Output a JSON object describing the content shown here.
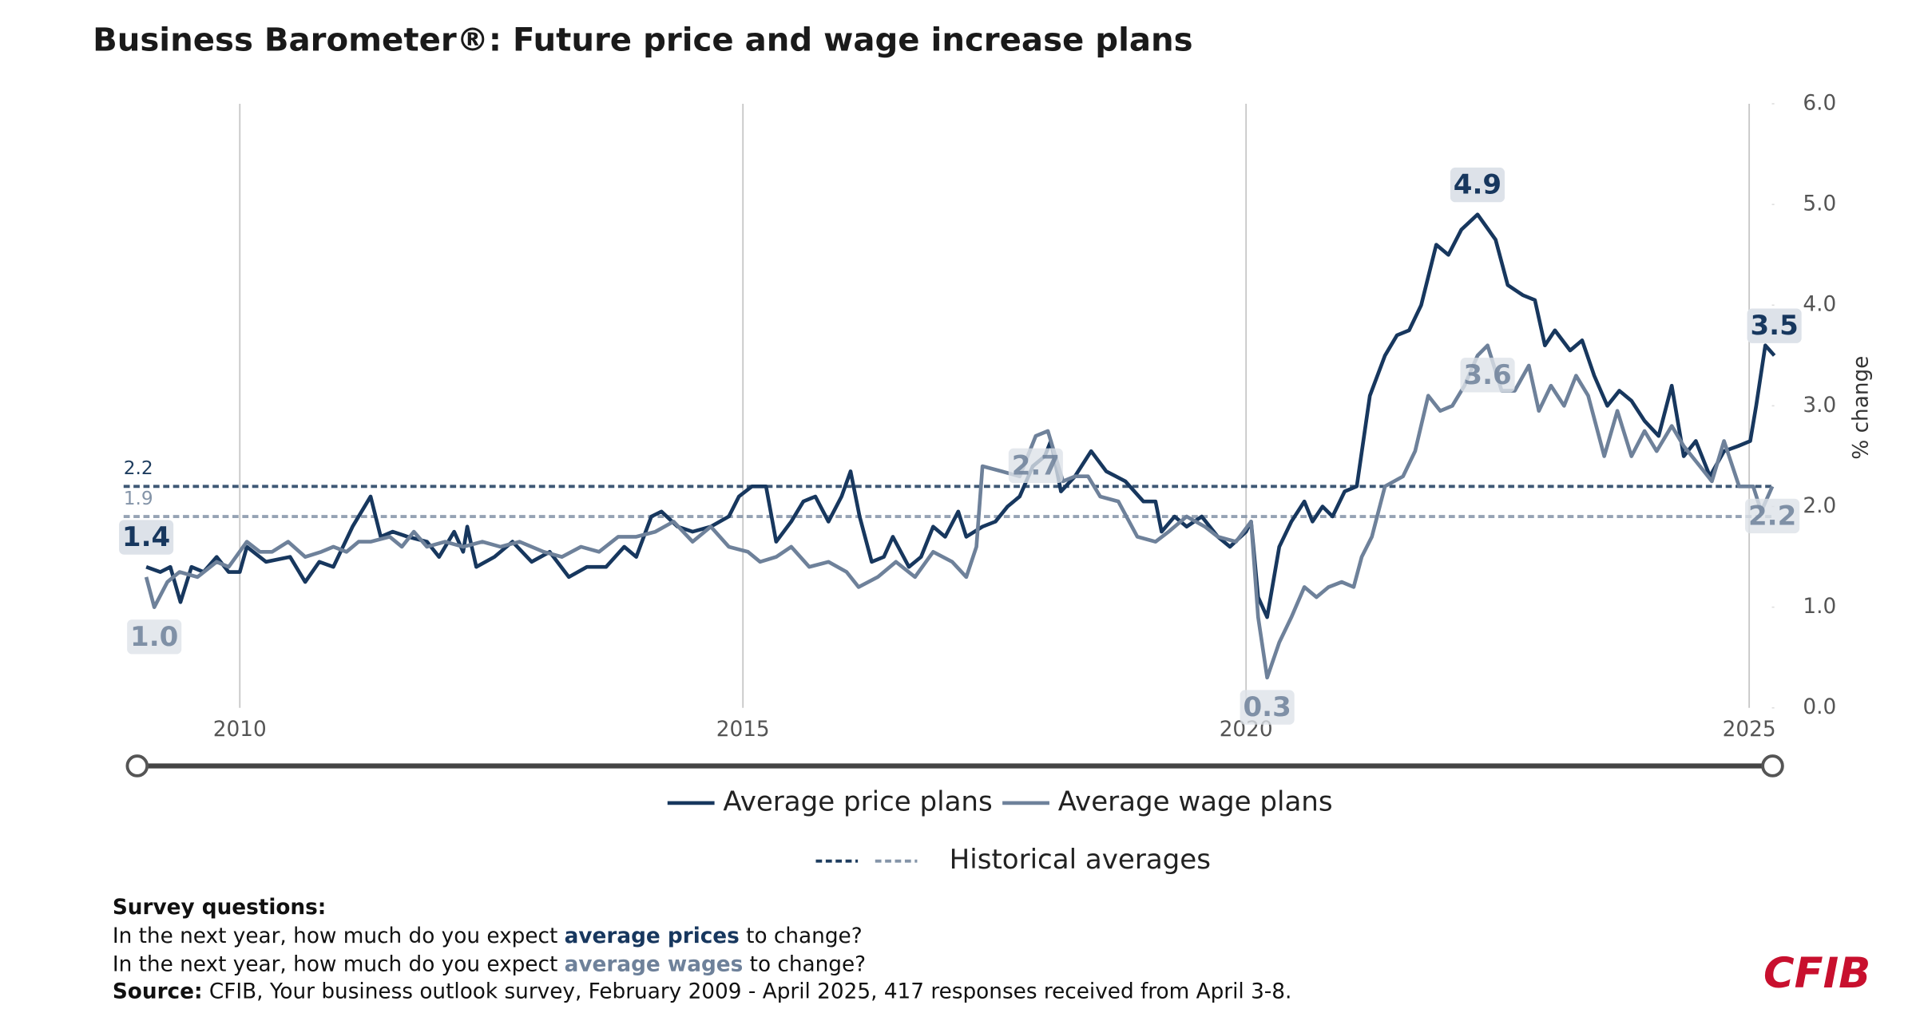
{
  "chart_data": {
    "type": "line",
    "title": "Business Barometer®: Future price and wage increase plans",
    "ylabel": "% change",
    "xlim": [
      2009,
      2025.25
    ],
    "xticks": [
      2010,
      2015,
      2020,
      2025
    ],
    "ylim": [
      0,
      6
    ],
    "yticks": [
      {
        "value": 0,
        "label": "0.0"
      },
      {
        "value": 1,
        "label": "1.0"
      },
      {
        "value": 2,
        "label": "2.0"
      },
      {
        "value": 3,
        "label": "3.0"
      },
      {
        "value": 4,
        "label": "4.0"
      },
      {
        "value": 5,
        "label": "5.0"
      },
      {
        "value": 6,
        "label": "6.0"
      }
    ],
    "grid": true,
    "historical_label": "Historical averages",
    "historical_averages": [
      {
        "value": 2.2,
        "color": "#1d3c5e"
      },
      {
        "value": 1.9,
        "color": "#8494a8"
      }
    ],
    "series": [
      {
        "name": "Average price plans",
        "color": "#17375e",
        "x": [
          2009.07,
          2009.21,
          2009.31,
          2009.41,
          2009.52,
          2009.64,
          2009.77,
          2009.89,
          2010.0,
          2010.07,
          2010.26,
          2010.5,
          2010.65,
          2010.79,
          2010.93,
          2011.12,
          2011.3,
          2011.4,
          2011.52,
          2011.67,
          2011.86,
          2011.98,
          2012.13,
          2012.22,
          2012.26,
          2012.35,
          2012.53,
          2012.71,
          2012.9,
          2013.08,
          2013.27,
          2013.45,
          2013.64,
          2013.82,
          2013.94,
          2014.09,
          2014.19,
          2014.35,
          2014.5,
          2014.68,
          2014.86,
          2014.96,
          2015.09,
          2015.23,
          2015.33,
          2015.48,
          2015.6,
          2015.72,
          2015.85,
          2015.98,
          2016.07,
          2016.16,
          2016.28,
          2016.4,
          2016.49,
          2016.65,
          2016.77,
          2016.89,
          2017.01,
          2017.14,
          2017.22,
          2017.38,
          2017.51,
          2017.63,
          2017.75,
          2017.88,
          2018.0,
          2018.06,
          2018.16,
          2018.3,
          2018.46,
          2018.61,
          2018.8,
          2018.98,
          2019.1,
          2019.16,
          2019.29,
          2019.41,
          2019.56,
          2019.72,
          2019.84,
          2020.0,
          2020.05,
          2020.12,
          2020.21,
          2020.33,
          2020.45,
          2020.58,
          2020.66,
          2020.76,
          2020.86,
          2020.98,
          2021.1,
          2021.23,
          2021.38,
          2021.5,
          2021.62,
          2021.74,
          2021.89,
          2022.01,
          2022.14,
          2022.3,
          2022.48,
          2022.6,
          2022.75,
          2022.87,
          2022.97,
          2023.07,
          2023.22,
          2023.34,
          2023.46,
          2023.59,
          2023.71,
          2023.83,
          2023.96,
          2024.1,
          2024.23,
          2024.35,
          2024.47,
          2024.61,
          2024.75,
          2024.89,
          2025.01,
          2025.07,
          2025.16,
          2025.25
        ],
        "values": [
          1.4,
          1.35,
          1.4,
          1.05,
          1.4,
          1.35,
          1.5,
          1.35,
          1.35,
          1.6,
          1.45,
          1.5,
          1.25,
          1.45,
          1.4,
          1.8,
          2.1,
          1.7,
          1.75,
          1.7,
          1.65,
          1.5,
          1.75,
          1.55,
          1.8,
          1.4,
          1.5,
          1.65,
          1.45,
          1.55,
          1.3,
          1.4,
          1.4,
          1.6,
          1.5,
          1.9,
          1.95,
          1.8,
          1.75,
          1.8,
          1.9,
          2.1,
          2.2,
          2.2,
          1.65,
          1.85,
          2.05,
          2.1,
          1.85,
          2.1,
          2.35,
          1.9,
          1.45,
          1.5,
          1.7,
          1.4,
          1.5,
          1.8,
          1.7,
          1.95,
          1.7,
          1.8,
          1.85,
          2.0,
          2.1,
          2.4,
          2.5,
          2.65,
          2.15,
          2.3,
          2.55,
          2.35,
          2.25,
          2.05,
          2.05,
          1.75,
          1.9,
          1.8,
          1.9,
          1.7,
          1.6,
          1.75,
          1.85,
          1.1,
          0.9,
          1.6,
          1.85,
          2.05,
          1.85,
          2.0,
          1.9,
          2.15,
          2.2,
          3.1,
          3.5,
          3.7,
          3.75,
          4.0,
          4.6,
          4.5,
          4.75,
          4.9,
          4.65,
          4.2,
          4.1,
          4.05,
          3.6,
          3.75,
          3.55,
          3.65,
          3.3,
          3.0,
          3.15,
          3.05,
          2.85,
          2.7,
          3.2,
          2.5,
          2.65,
          2.3,
          2.55,
          2.6,
          2.65,
          3.0,
          3.6,
          3.5
        ],
        "labels": [
          {
            "x": 2009.07,
            "value": 1.4,
            "label": "1.4"
          },
          {
            "x": 2022.3,
            "value": 4.9,
            "label": "4.9"
          },
          {
            "x": 2025.25,
            "value": 3.5,
            "label": "3.5"
          }
        ]
      },
      {
        "name": "Average wage plans",
        "color": "#6e819a",
        "x": [
          2009.07,
          2009.15,
          2009.28,
          2009.4,
          2009.58,
          2009.77,
          2009.89,
          2010.07,
          2010.2,
          2010.32,
          2010.48,
          2010.65,
          2010.81,
          2010.93,
          2011.06,
          2011.18,
          2011.3,
          2011.49,
          2011.61,
          2011.73,
          2011.86,
          2012.04,
          2012.22,
          2012.41,
          2012.59,
          2012.78,
          2013.02,
          2013.2,
          2013.39,
          2013.57,
          2013.76,
          2013.94,
          2014.13,
          2014.31,
          2014.5,
          2014.68,
          2014.86,
          2015.05,
          2015.17,
          2015.33,
          2015.48,
          2015.66,
          2015.85,
          2016.03,
          2016.15,
          2016.34,
          2016.52,
          2016.71,
          2016.89,
          2017.08,
          2017.22,
          2017.32,
          2017.38,
          2017.57,
          2017.75,
          2017.91,
          2018.03,
          2018.18,
          2018.3,
          2018.43,
          2018.55,
          2018.73,
          2018.92,
          2019.1,
          2019.23,
          2019.41,
          2019.59,
          2019.72,
          2019.9,
          2020.05,
          2020.12,
          2020.21,
          2020.33,
          2020.45,
          2020.58,
          2020.7,
          2020.82,
          2020.95,
          2021.07,
          2021.15,
          2021.25,
          2021.38,
          2021.56,
          2021.68,
          2021.81,
          2021.93,
          2022.05,
          2022.17,
          2022.3,
          2022.4,
          2022.54,
          2022.67,
          2022.81,
          2022.91,
          2023.03,
          2023.16,
          2023.28,
          2023.4,
          2023.56,
          2023.69,
          2023.83,
          2023.96,
          2024.08,
          2024.23,
          2024.35,
          2024.51,
          2024.63,
          2024.75,
          2024.9,
          2025.04,
          2025.12,
          2025.23
        ],
        "values": [
          1.3,
          1.0,
          1.25,
          1.35,
          1.3,
          1.45,
          1.4,
          1.65,
          1.55,
          1.55,
          1.65,
          1.5,
          1.55,
          1.6,
          1.55,
          1.65,
          1.65,
          1.7,
          1.6,
          1.75,
          1.6,
          1.65,
          1.6,
          1.65,
          1.6,
          1.65,
          1.55,
          1.5,
          1.6,
          1.55,
          1.7,
          1.7,
          1.75,
          1.85,
          1.65,
          1.8,
          1.6,
          1.55,
          1.45,
          1.5,
          1.6,
          1.4,
          1.45,
          1.35,
          1.2,
          1.3,
          1.45,
          1.3,
          1.55,
          1.45,
          1.3,
          1.6,
          2.4,
          2.35,
          2.3,
          2.7,
          2.75,
          2.25,
          2.3,
          2.3,
          2.1,
          2.05,
          1.7,
          1.65,
          1.75,
          1.9,
          1.8,
          1.7,
          1.65,
          1.85,
          0.9,
          0.3,
          0.65,
          0.9,
          1.2,
          1.1,
          1.2,
          1.25,
          1.2,
          1.5,
          1.7,
          2.2,
          2.3,
          2.55,
          3.1,
          2.95,
          3.0,
          3.2,
          3.5,
          3.6,
          3.15,
          3.15,
          3.4,
          2.95,
          3.2,
          3.0,
          3.3,
          3.1,
          2.5,
          2.95,
          2.5,
          2.75,
          2.55,
          2.8,
          2.6,
          2.4,
          2.25,
          2.65,
          2.2,
          2.2,
          1.95,
          2.2
        ],
        "labels": [
          {
            "x": 2009.15,
            "value": 1.0,
            "label": "1.0"
          },
          {
            "x": 2017.91,
            "value": 2.7,
            "label": "2.7"
          },
          {
            "x": 2020.21,
            "value": 0.3,
            "label": "0.3"
          },
          {
            "x": 2022.4,
            "value": 3.6,
            "label": "3.6"
          },
          {
            "x": 2025.23,
            "value": 2.2,
            "label": "2.2"
          }
        ]
      }
    ]
  },
  "notes": {
    "heading": "Survey questions:",
    "questions": [
      [
        "In the next year, how much do you expect ",
        "average prices",
        " to change?"
      ],
      [
        "In the next year, how much do you expect ",
        "average wages",
        " to change?"
      ]
    ],
    "source_label": "Source:",
    "source_text": " CFIB, Your business outlook survey, February 2009 - April 2025, 417 responses received from April 3-8."
  },
  "logo": "CFIB"
}
